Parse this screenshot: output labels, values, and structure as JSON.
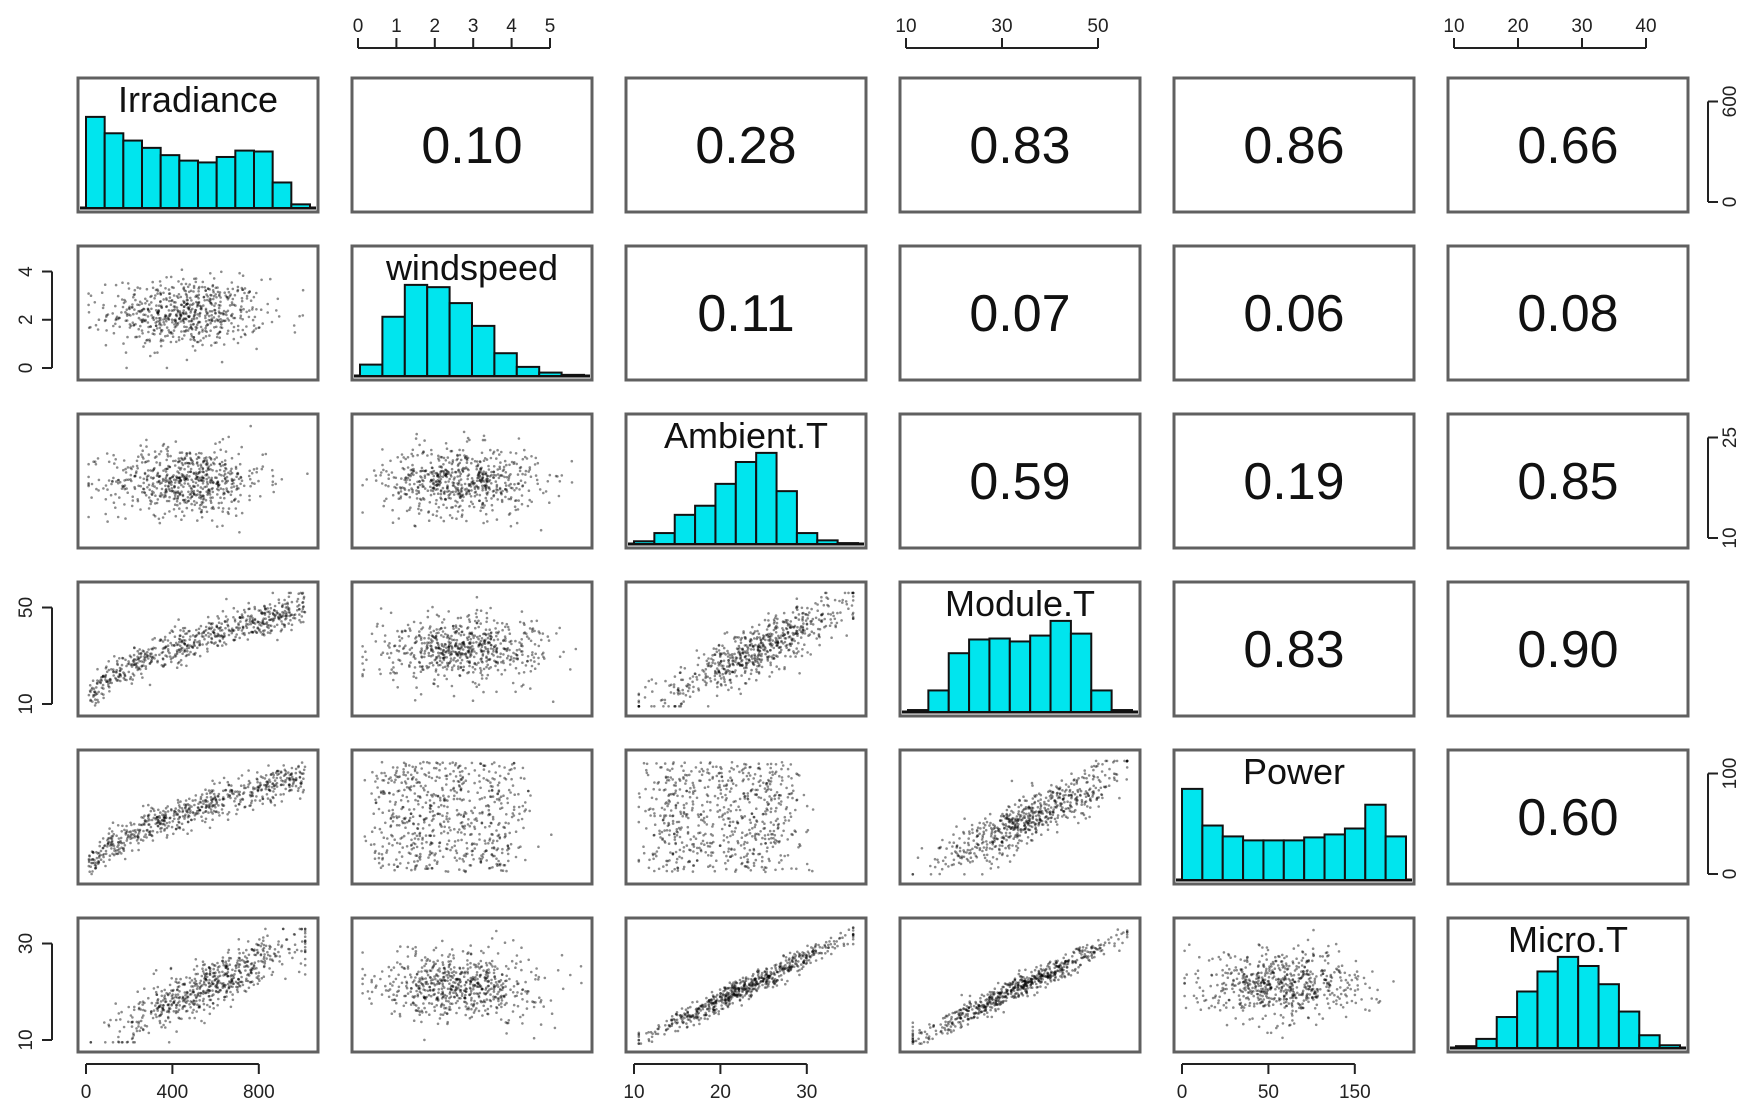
{
  "chart_data": {
    "type": "scatter",
    "variables": [
      "Irradiance",
      "windspeed",
      "Ambient.T",
      "Module.T",
      "Power",
      "Micro.T"
    ],
    "correlations": [
      {
        "row": "Irradiance",
        "col": "windspeed",
        "value": "0.10"
      },
      {
        "row": "Irradiance",
        "col": "Ambient.T",
        "value": "0.28"
      },
      {
        "row": "Irradiance",
        "col": "Module.T",
        "value": "0.83"
      },
      {
        "row": "Irradiance",
        "col": "Power",
        "value": "0.86"
      },
      {
        "row": "Irradiance",
        "col": "Micro.T",
        "value": "0.66"
      },
      {
        "row": "windspeed",
        "col": "Ambient.T",
        "value": "0.11"
      },
      {
        "row": "windspeed",
        "col": "Module.T",
        "value": "0.07"
      },
      {
        "row": "windspeed",
        "col": "Power",
        "value": "0.06"
      },
      {
        "row": "windspeed",
        "col": "Micro.T",
        "value": "0.08"
      },
      {
        "row": "Ambient.T",
        "col": "Module.T",
        "value": "0.59"
      },
      {
        "row": "Ambient.T",
        "col": "Power",
        "value": "0.19"
      },
      {
        "row": "Ambient.T",
        "col": "Micro.T",
        "value": "0.85"
      },
      {
        "row": "Module.T",
        "col": "Power",
        "value": "0.83"
      },
      {
        "row": "Module.T",
        "col": "Micro.T",
        "value": "0.90"
      },
      {
        "row": "Power",
        "col": "Micro.T",
        "value": "0.60"
      }
    ],
    "histograms": [
      {
        "variable": "Irradiance",
        "counts": [
          100,
          82,
          74,
          66,
          58,
          52,
          50,
          56,
          63,
          62,
          28,
          4
        ]
      },
      {
        "variable": "windspeed",
        "counts": [
          10,
          52,
          80,
          78,
          64,
          44,
          20,
          8,
          3,
          1
        ]
      },
      {
        "variable": "Ambient.T",
        "counts": [
          3,
          12,
          32,
          42,
          66,
          90,
          100,
          58,
          12,
          4,
          1
        ]
      },
      {
        "variable": "Module.T",
        "counts": [
          2,
          22,
          60,
          74,
          75,
          72,
          78,
          93,
          80,
          22,
          2
        ]
      },
      {
        "variable": "Power",
        "counts": [
          92,
          55,
          44,
          40,
          40,
          40,
          43,
          46,
          52,
          76,
          44
        ]
      },
      {
        "variable": "Micro.T",
        "counts": [
          2,
          10,
          34,
          62,
          84,
          100,
          90,
          70,
          40,
          14,
          3
        ]
      }
    ],
    "scatter_shapes": [
      {
        "row": "windspeed",
        "col": "Irradiance",
        "shape": "blob"
      },
      {
        "row": "Ambient.T",
        "col": "Irradiance",
        "shape": "blob"
      },
      {
        "row": "Ambient.T",
        "col": "windspeed",
        "shape": "blob"
      },
      {
        "row": "Module.T",
        "col": "Irradiance",
        "shape": "curve"
      },
      {
        "row": "Module.T",
        "col": "windspeed",
        "shape": "blob"
      },
      {
        "row": "Module.T",
        "col": "Ambient.T",
        "shape": "band"
      },
      {
        "row": "Power",
        "col": "Irradiance",
        "shape": "curve"
      },
      {
        "row": "Power",
        "col": "windspeed",
        "shape": "uniform"
      },
      {
        "row": "Power",
        "col": "Ambient.T",
        "shape": "uniform"
      },
      {
        "row": "Power",
        "col": "Module.T",
        "shape": "band"
      },
      {
        "row": "Micro.T",
        "col": "Irradiance",
        "shape": "band"
      },
      {
        "row": "Micro.T",
        "col": "windspeed",
        "shape": "blob"
      },
      {
        "row": "Micro.T",
        "col": "Ambient.T",
        "shape": "line"
      },
      {
        "row": "Micro.T",
        "col": "Module.T",
        "shape": "line"
      },
      {
        "row": "Micro.T",
        "col": "Power",
        "shape": "blob"
      }
    ],
    "axes": {
      "top": [
        {
          "col": "windspeed",
          "ticks": [
            "0",
            "1",
            "2",
            "3",
            "4",
            "5"
          ]
        },
        {
          "col": "Module.T",
          "ticks": [
            "10",
            "30",
            "50"
          ]
        },
        {
          "col": "Micro.T",
          "ticks": [
            "10",
            "20",
            "30",
            "40"
          ]
        }
      ],
      "bottom": [
        {
          "col": "Irradiance",
          "ticks": [
            "0",
            "400",
            "800"
          ]
        },
        {
          "col": "Ambient.T",
          "ticks": [
            "10",
            "20",
            "30"
          ]
        },
        {
          "col": "Power",
          "ticks": [
            "0",
            "50",
            "150"
          ]
        }
      ],
      "right": [
        {
          "row": "Irradiance",
          "ticks": [
            "0",
            "600"
          ]
        },
        {
          "row": "Ambient.T",
          "ticks": [
            "10",
            "25"
          ]
        },
        {
          "row": "Power",
          "ticks": [
            "0",
            "100"
          ]
        }
      ],
      "left": [
        {
          "row": "windspeed",
          "ticks": [
            "0",
            "2",
            "4"
          ]
        },
        {
          "row": "Module.T",
          "ticks": [
            "10",
            "50"
          ]
        },
        {
          "row": "Micro.T",
          "ticks": [
            "10",
            "30"
          ]
        }
      ]
    },
    "colors": {
      "histogram_fill": "#00e5ee",
      "points": "#000000",
      "panel_border": "#606060"
    }
  }
}
